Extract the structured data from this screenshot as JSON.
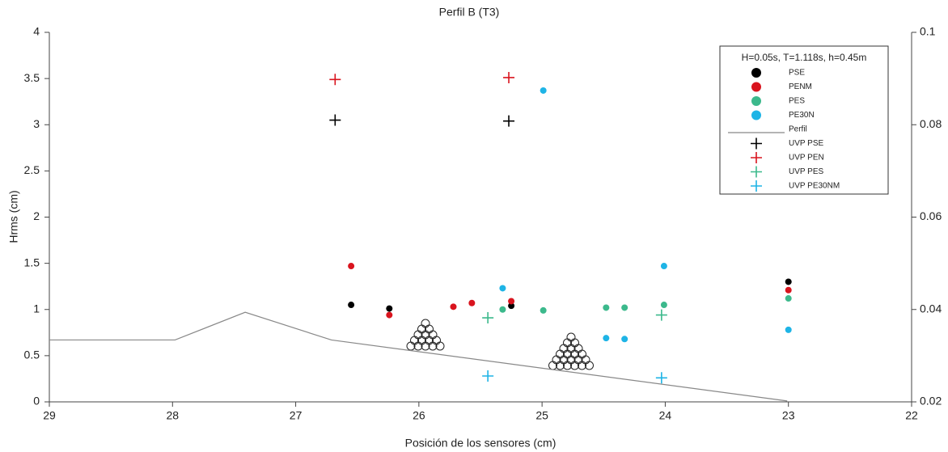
{
  "chart_data": {
    "type": "scatter",
    "title": "Perfil B (T3)",
    "x_label": "Posición de los sensores (cm)",
    "y_label": "Hrms (cm)",
    "xlim": [
      29,
      22
    ],
    "xticks": [
      29,
      28,
      27,
      26,
      25,
      24,
      23,
      22
    ],
    "ylim": [
      0,
      4
    ],
    "yticks": [
      0,
      0.5,
      1,
      1.5,
      2,
      2.5,
      3,
      3.5,
      4
    ],
    "y2lim": [
      0.02,
      0.1
    ],
    "y2ticks": [
      0.02,
      0.04,
      0.06,
      0.08,
      0.1
    ],
    "legend_title": "H=0.05s, T=1.118s, h=0.45m",
    "legend": "top-right",
    "series": [
      {
        "name": "PSE",
        "color": "#000000",
        "marker": "circle",
        "x": [
          26.55,
          26.24,
          25.25,
          23.0
        ],
        "values": [
          1.05,
          1.01,
          1.04,
          1.3
        ]
      },
      {
        "name": "PENM",
        "color": "#d9141e",
        "marker": "circle",
        "x": [
          26.55,
          26.24,
          25.72,
          25.57,
          25.25,
          23.0
        ],
        "values": [
          1.47,
          0.94,
          1.03,
          1.07,
          1.09,
          1.21
        ]
      },
      {
        "name": "PES",
        "color": "#3cb98c",
        "marker": "circle",
        "x": [
          25.32,
          24.99,
          24.48,
          24.33,
          24.01,
          23.0
        ],
        "values": [
          1.0,
          0.99,
          1.02,
          1.02,
          1.05,
          1.12
        ]
      },
      {
        "name": "PE30N",
        "color": "#1eb4e6",
        "marker": "circle",
        "x": [
          25.32,
          24.99,
          24.48,
          24.33,
          24.01,
          23.0
        ],
        "values": [
          1.23,
          3.37,
          0.69,
          0.68,
          1.47,
          0.78
        ]
      },
      {
        "name": "Perfil",
        "color": "#888888",
        "marker": "line",
        "x": [
          29,
          27.98,
          27.41,
          26.71,
          23.01
        ],
        "values": [
          0.67,
          0.67,
          0.97,
          0.67,
          0.01
        ]
      },
      {
        "name": "UVP PSE",
        "color": "#000000",
        "marker": "plus",
        "x": [
          26.68,
          25.27
        ],
        "values": [
          3.05,
          3.04
        ]
      },
      {
        "name": "UVP PEN",
        "color": "#d9141e",
        "marker": "plus",
        "x": [
          26.68,
          25.27
        ],
        "values": [
          3.49,
          3.51
        ]
      },
      {
        "name": "UVP PES",
        "color": "#3cb98c",
        "marker": "plus",
        "x": [
          25.44,
          24.03
        ],
        "values": [
          0.91,
          0.94
        ]
      },
      {
        "name": "UVP PE30NM",
        "color": "#1eb4e6",
        "marker": "plus",
        "x": [
          25.44,
          24.03
        ],
        "values": [
          0.28,
          0.26
        ]
      }
    ]
  }
}
